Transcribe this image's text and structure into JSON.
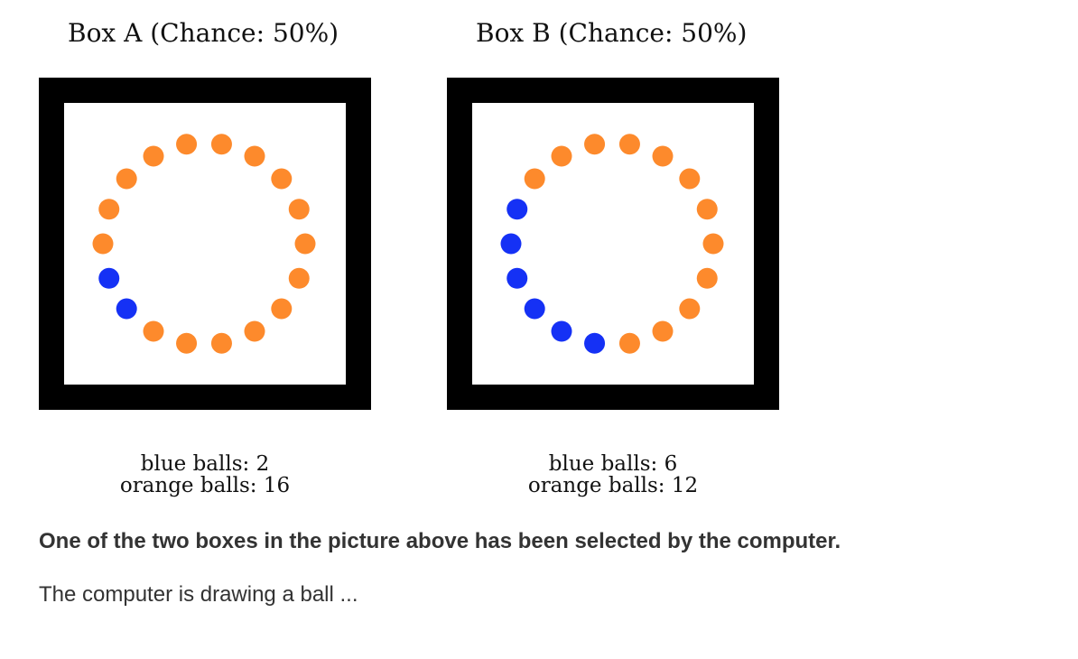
{
  "colors": {
    "blue": "#1531f5",
    "orange": "#fd8a2c",
    "frame": "#000000",
    "text": "#333333"
  },
  "boxes": [
    {
      "title": "Box A (Chance: 50%)",
      "blue_label": "blue balls: 2",
      "orange_label": "orange balls: 16",
      "blue_count": 2,
      "orange_count": 16,
      "ring": [
        "orange",
        "orange",
        "orange",
        "orange",
        "orange",
        "orange",
        "orange",
        "orange",
        "orange",
        "orange",
        "orange",
        "orange",
        "blue",
        "blue",
        "orange",
        "orange",
        "orange",
        "orange"
      ]
    },
    {
      "title": "Box B (Chance: 50%)",
      "blue_label": "blue balls: 6",
      "orange_label": "orange balls: 12",
      "blue_count": 6,
      "orange_count": 12,
      "ring": [
        "orange",
        "orange",
        "orange",
        "orange",
        "orange",
        "orange",
        "orange",
        "orange",
        "orange",
        "orange",
        "blue",
        "blue",
        "blue",
        "blue",
        "blue",
        "blue",
        "orange",
        "orange"
      ]
    }
  ],
  "prompt": "One of the two boxes in the picture above has been selected by the computer.",
  "status": "The computer is drawing a ball ..."
}
